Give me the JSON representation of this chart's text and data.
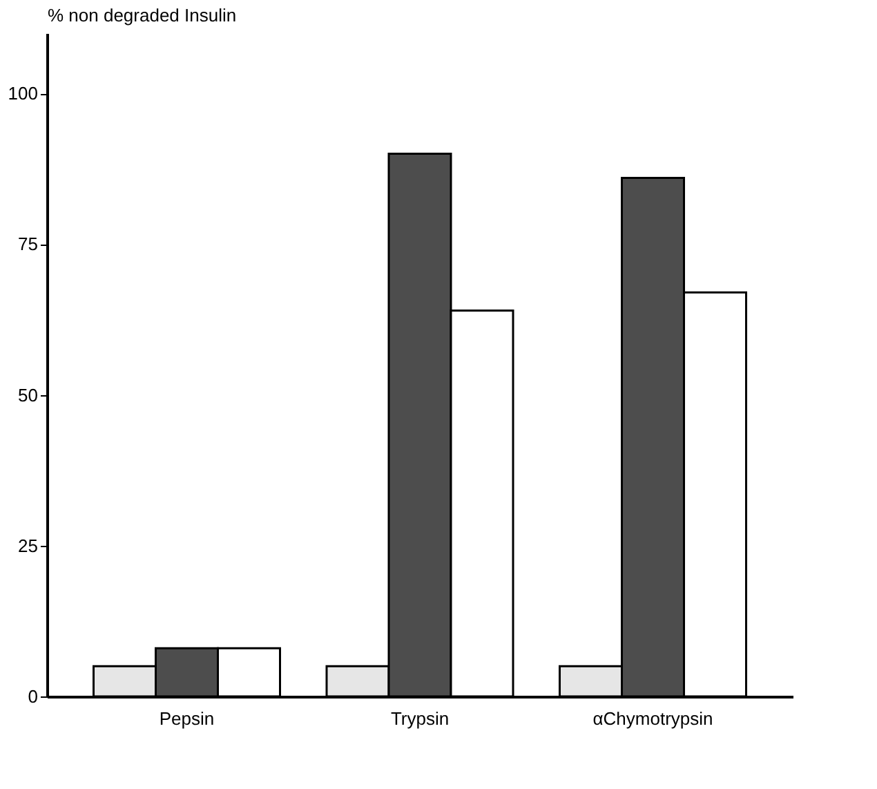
{
  "chart_data": {
    "type": "bar",
    "ylabel": "% non degraded Insulin",
    "categories": [
      "Pepsin",
      "Trypsin",
      "αChymotrypsin"
    ],
    "series": [
      {
        "color": "#e6e6e6",
        "values": [
          5,
          5,
          5
        ]
      },
      {
        "color": "#4d4d4d",
        "values": [
          8,
          90,
          86
        ]
      },
      {
        "color": "#ffffff",
        "values": [
          8,
          64,
          67
        ]
      }
    ],
    "ylim": [
      0,
      110
    ],
    "yticks": [
      0,
      25,
      50,
      75,
      100
    ],
    "grid": false,
    "legend": false
  }
}
